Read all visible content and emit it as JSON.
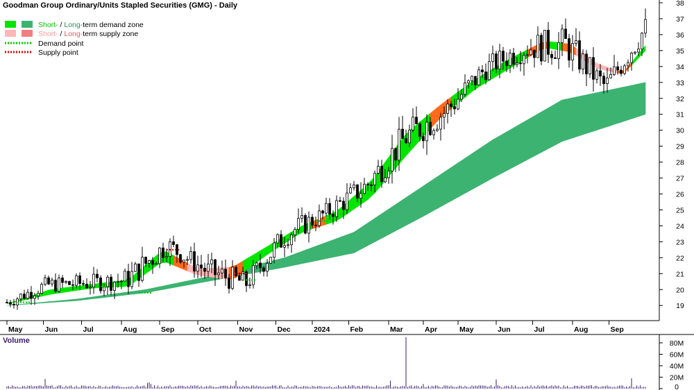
{
  "chart_data": {
    "type": "candlestick",
    "title": "Goodman Group Ordinary/Units Stapled Securities (GMG) - Daily",
    "legend": {
      "placement": "top-left",
      "demand_zone": {
        "short": "Short-",
        "sep": " / ",
        "long": "Long-",
        "tail": "term demand zone"
      },
      "supply_zone": {
        "short": "Short-",
        "sep": " / ",
        "long": "Long-",
        "tail": "term supply zone"
      },
      "demand_point": "Demand point",
      "supply_point": "Supply point"
    },
    "y_axis": {
      "side": "right",
      "range": [
        18.4,
        38.0
      ],
      "ticks": [
        19,
        20,
        21,
        22,
        23,
        24,
        25,
        26,
        27,
        28,
        29,
        30,
        31,
        32,
        33,
        34,
        35,
        36,
        37,
        38
      ]
    },
    "x_axis": {
      "tick_labels": [
        "May",
        "Jun",
        "Jul",
        "Aug",
        "Sep",
        "Oct",
        "Nov",
        "Dec",
        "2024",
        "Feb",
        "Mar",
        "Apr",
        "May",
        "Jun",
        "Jul",
        "Aug",
        "Sep"
      ],
      "tick_index": [
        0,
        21,
        43,
        66,
        88,
        110,
        133,
        155,
        176,
        197,
        220,
        240,
        260,
        282,
        303,
        326,
        347
      ]
    },
    "series": [
      {
        "x": [
          0,
          23,
          46,
          69,
          92,
          115,
          138,
          161,
          184,
          207,
          230,
          253,
          276,
          299,
          322,
          345,
          368
        ],
        "close": [
          19.2,
          20.3,
          20.4,
          20.6,
          22.8,
          21.2,
          20.4,
          23.5,
          24.8,
          26.5,
          29.6,
          31.2,
          33.9,
          35.2,
          35.4,
          32.7,
          36.4
        ]
      },
      {
        "x": [
          0,
          25,
          50,
          70,
          90,
          110,
          130,
          150,
          170,
          190,
          210,
          230,
          250,
          270,
          290,
          310,
          325,
          340,
          355,
          368
        ],
        "upper": [
          19.1,
          20.0,
          20.35,
          20.6,
          22.5,
          21.3,
          21.4,
          22.7,
          24.0,
          24.9,
          26.8,
          29.8,
          31.6,
          33.2,
          34.5,
          35.6,
          35.4,
          34.2,
          33.6,
          35.3
        ],
        "lower": [
          19.1,
          19.7,
          20.1,
          20.2,
          21.8,
          20.9,
          20.6,
          22.2,
          23.6,
          24.3,
          25.8,
          28.4,
          30.8,
          32.6,
          33.9,
          35.2,
          34.9,
          33.9,
          33.5,
          35.0
        ]
      },
      {
        "x": [
          0,
          40,
          80,
          120,
          160,
          200,
          240,
          280,
          320,
          368
        ],
        "upper": [
          19.0,
          19.4,
          20.0,
          20.9,
          22.0,
          23.6,
          26.5,
          29.4,
          31.9,
          33.0
        ],
        "lower": [
          19.0,
          19.3,
          19.8,
          20.6,
          21.4,
          22.3,
          24.6,
          27.0,
          29.3,
          31.0
        ]
      },
      {
        "x": [
          0,
          20,
          40,
          60,
          80,
          100,
          120,
          140,
          160,
          180,
          200,
          220,
          240,
          260,
          280,
          300,
          320,
          340,
          368
        ],
        "values": [
          0.9,
          1.1,
          1.2,
          1.3,
          2.0,
          1.4,
          1.8,
          1.5,
          1.8,
          1.4,
          1.7,
          2.2,
          2.4,
          2.0,
          1.6,
          2.0,
          2.4,
          1.9,
          1.8
        ]
      }
    ],
    "volume": {
      "label": "Volume",
      "ticks": [
        "80M",
        "60M",
        "40M",
        "20M",
        "0"
      ],
      "tick_values": [
        80,
        60,
        40,
        20,
        0
      ],
      "spikes": [
        [
          22,
          17
        ],
        [
          81,
          10
        ],
        [
          82,
          11
        ],
        [
          83,
          8
        ],
        [
          132,
          14
        ],
        [
          221,
          14
        ],
        [
          230,
          90
        ],
        [
          240,
          8
        ],
        [
          282,
          16
        ],
        [
          360,
          18
        ]
      ]
    },
    "demand_points": [
      [
        10,
        19.2
      ],
      [
        33,
        20.0
      ],
      [
        55,
        20.2
      ],
      [
        80,
        19.8
      ],
      [
        140,
        20.6
      ],
      [
        182,
        24.3
      ]
    ],
    "supply_points": [
      [
        96,
        22.5
      ],
      [
        135,
        21.0
      ]
    ],
    "colors": {
      "short_demand": "#00e600",
      "long_demand": "#3cb371",
      "short_supply": "#ffb6b6",
      "long_supply": "#f08080",
      "transition": "#ff6a1a",
      "candle": "#000000",
      "volume": "#3a1e6e",
      "grid": "#d0d0d0"
    }
  }
}
